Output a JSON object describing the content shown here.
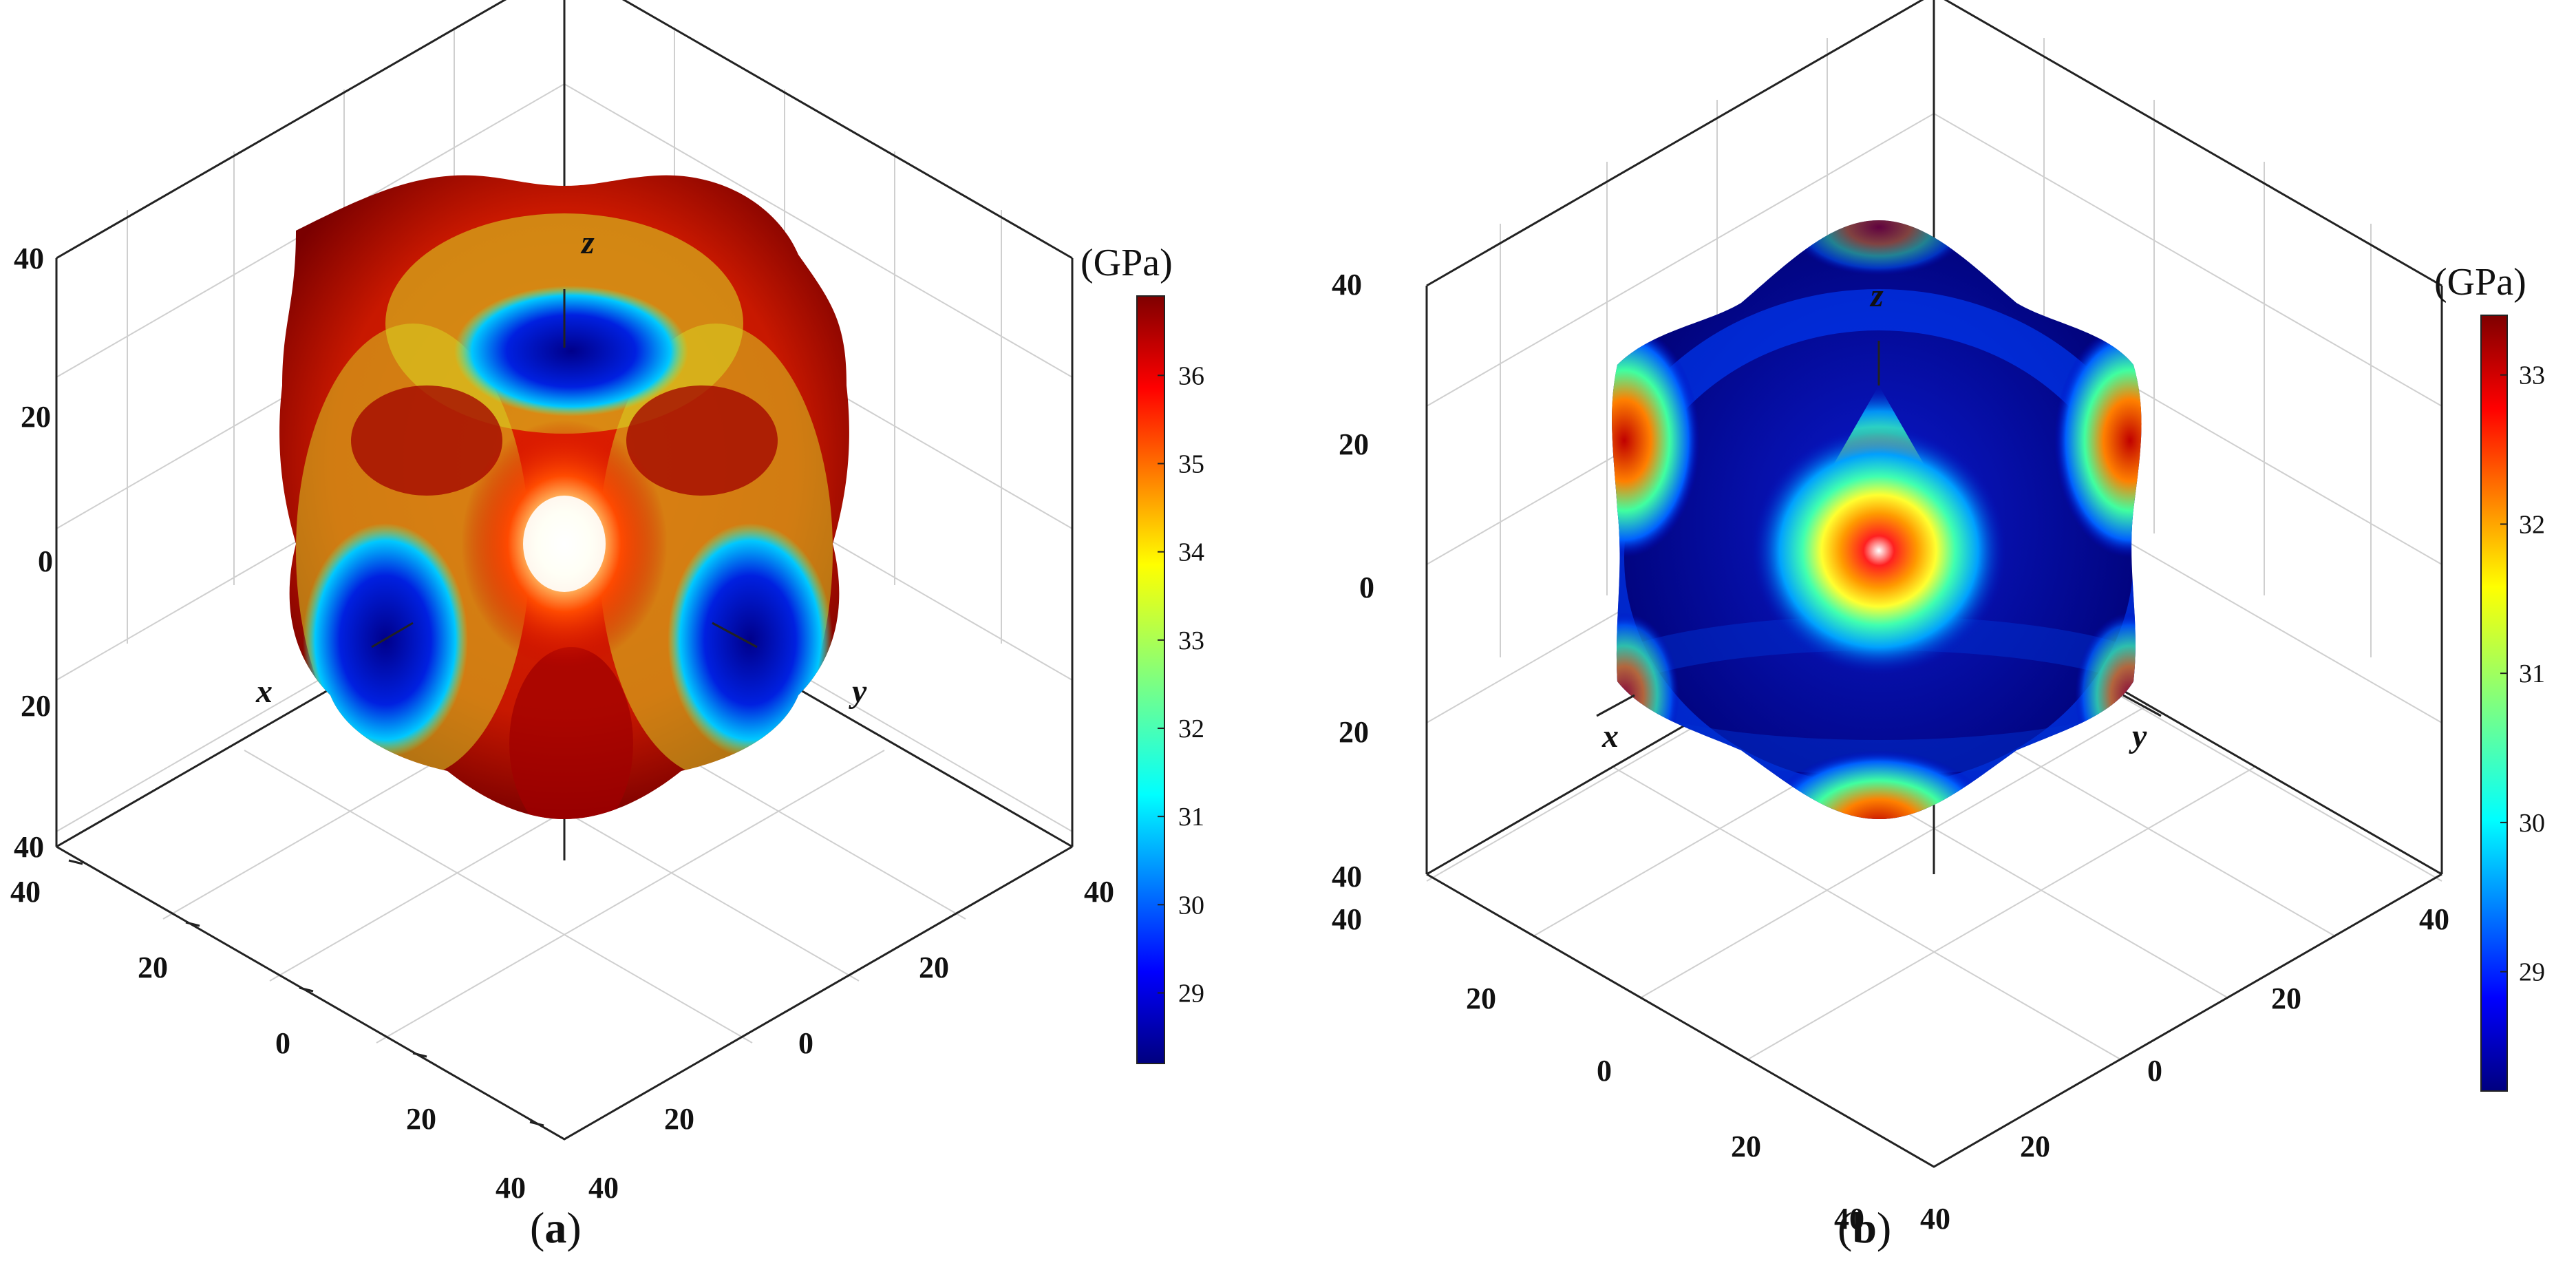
{
  "figure": {
    "panels": [
      {
        "caption_prefix": "(",
        "caption_letter": "a",
        "caption_suffix": ")",
        "colorbar_unit": "(GPa)",
        "colorbar_ticks": [
          "29",
          "30",
          "31",
          "32",
          "33",
          "34",
          "35",
          "36"
        ]
      },
      {
        "caption_prefix": "(",
        "caption_letter": "b",
        "caption_suffix": ")",
        "colorbar_unit": "(GPa)",
        "colorbar_ticks": [
          "29",
          "30",
          "31",
          "32",
          "33"
        ]
      }
    ]
  },
  "chart_data": [
    {
      "type": "surface3d",
      "title": "",
      "axes": {
        "x": "x",
        "y": "y",
        "z": "z"
      },
      "axis_ticks": [
        "40",
        "20",
        "0",
        "20",
        "40"
      ],
      "axis_range": [
        -40,
        40
      ],
      "colorbar": {
        "label": "(GPa)",
        "min": 28.2,
        "max": 36.9,
        "ticks": [
          29,
          30,
          31,
          32,
          33,
          34,
          35,
          36
        ],
        "colormap": "jet"
      },
      "surface": {
        "shape": "lobed",
        "max_directions": "<111>",
        "min_directions": "<100>"
      },
      "grid": true
    },
    {
      "type": "surface3d",
      "title": "",
      "axes": {
        "x": "x",
        "y": "y",
        "z": "z"
      },
      "axis_ticks": [
        "40",
        "20",
        "0",
        "20",
        "40"
      ],
      "axis_range": [
        -40,
        40
      ],
      "colorbar": {
        "label": "(GPa)",
        "min": 28.2,
        "max": 33.4,
        "ticks": [
          29,
          30,
          31,
          32,
          33
        ],
        "colormap": "jet"
      },
      "surface": {
        "shape": "near-spherical",
        "max_directions": "<111>",
        "min_directions": "<110>"
      },
      "grid": true
    }
  ]
}
